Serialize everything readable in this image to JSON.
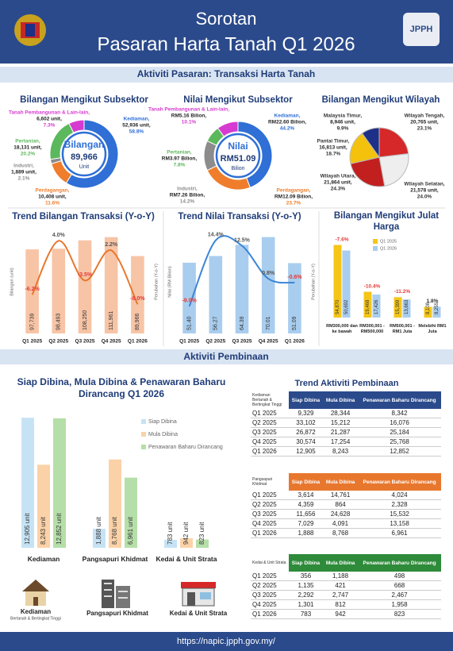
{
  "header": {
    "title_line1": "Sorotan",
    "title_line2": "Pasaran Harta Tanah Q1 2026",
    "logo": "JPPH"
  },
  "sections": [
    "Aktiviti Pasaran: Transaksi Harta Tanah",
    "Aktiviti Pembinaan"
  ],
  "chart_data": [
    {
      "type": "donut",
      "title": "Bilangan Mengikut Subsektor",
      "center": [
        "Bilangan",
        "89,966",
        "Unit"
      ],
      "categories": [
        "Kediaman,",
        "Perdagangan,",
        "Industri,",
        "Pertanian,",
        "Tanah Pembangunan & Lain-lain,"
      ],
      "amounts": [
        "52,936 unit,",
        "10,408 unit,",
        "1,889 unit,",
        "18,131 unit,",
        "6,602 unit,"
      ],
      "values": [
        58.8,
        11.6,
        2.1,
        20.2,
        7.3
      ],
      "value_labels": [
        "58.8%",
        "11.6%",
        "2.1%",
        "20.2%",
        "7.3%"
      ],
      "colors": [
        "#2f6fd6",
        "#ef7d2b",
        "#8c8c8c",
        "#5cb85c",
        "#d63ad0"
      ]
    },
    {
      "type": "donut",
      "title": "Nilai Mengikut Subsektor",
      "center": [
        "Nilai",
        "RM51.09",
        "Bilion"
      ],
      "categories": [
        "Kediaman,",
        "Perdagangan,",
        "Industri,",
        "Pertanian,",
        "Tanah Pembangunan & Lain-lain,"
      ],
      "amounts": [
        "RM22.60 Bilion,",
        "RM12.09 Bilion,",
        "RM7.26 Bilion,",
        "RM3.97 Bilion,",
        "RM5.16 Bilion,"
      ],
      "values": [
        44.2,
        23.7,
        14.2,
        7.8,
        10.1
      ],
      "value_labels": [
        "44.2%",
        "23.7%",
        "14.2%",
        "7.8%",
        "10.1%"
      ],
      "colors": [
        "#2f6fd6",
        "#ef7d2b",
        "#8c8c8c",
        "#5cb85c",
        "#d63ad0"
      ]
    },
    {
      "type": "pie",
      "title": "Bilangan Mengikut Wilayah",
      "categories": [
        "Malaysia Timur,",
        "Wilayah Tengah,",
        "Wilayah Selatan,",
        "Wilayah Utara,",
        "Pantai Timur,"
      ],
      "amounts": [
        "8,946 unit,",
        "20,765 unit,",
        "21,578 unit,",
        "21,864 unit,",
        "16,813 unit,"
      ],
      "values": [
        9.9,
        23.1,
        24.0,
        24.3,
        18.7
      ],
      "value_labels": [
        "9.9%",
        "23.1%",
        "24.0%",
        "24.3%",
        "18.7%"
      ],
      "colors": [
        "#1d2f87",
        "#d62828",
        "#eeeeee",
        "#c21f1f",
        "#f4c20d"
      ]
    },
    {
      "type": "bar-line",
      "title": "Trend Bilangan Transaksi (Y-o-Y)",
      "categories": [
        "Q1 2025",
        "Q2 2025",
        "Q3 2025",
        "Q4 2025",
        "Q1 2026"
      ],
      "values": [
        97739,
        98493,
        108250,
        111961,
        89966
      ],
      "value_labels": [
        "97,739",
        "98,493",
        "108,250",
        "111,961",
        "89,966"
      ],
      "line_values": [
        -6.2,
        4.0,
        -3.5,
        2.2,
        -8.0
      ],
      "line_labels": [
        "-6.2%",
        "4.0%",
        "-3.5%",
        "2.2%",
        "-8.0%"
      ],
      "ylabel": "Bilangan (unit)",
      "y2label": "Perubahan (Y-o-Y)",
      "ylim": [
        0,
        120000
      ],
      "y2lim": [
        -13.5,
        6
      ],
      "bar_color": "#f7c4a6",
      "line_color": "#e8772e"
    },
    {
      "type": "bar-line",
      "title": "Trend Nilai Transaksi (Y-o-Y)",
      "categories": [
        "Q1 2025",
        "Q2 2025",
        "Q3 2025",
        "Q4 2025",
        "Q1 2026"
      ],
      "values": [
        51.4,
        56.27,
        64.39,
        70.01,
        51.09
      ],
      "value_labels": [
        "51.40",
        "56.27",
        "64.39",
        "70.01",
        "51.09"
      ],
      "line_values": [
        -9.0,
        14.4,
        12.5,
        0.8,
        -0.6
      ],
      "line_labels": [
        "-9.0%",
        "14.4%",
        "12.5%",
        "0.8%",
        "-0.6%"
      ],
      "ylabel": "Nilai (RM Bilion)",
      "y2label": "Perubahan (Y-o-Y)",
      "ylim": [
        0,
        75
      ],
      "y2lim": [
        -18.6,
        18
      ],
      "bar_color": "#a9cdee",
      "line_color": "#3b86d6"
    },
    {
      "type": "grouped-bar",
      "title": "Bilangan Mengikut Julat Harga",
      "categories": [
        "RM300,000 dan ke bawah",
        "RM300,001 - RM500,000",
        "RM500,001 - RM1 Juta",
        "Melebihi RM1 Juta"
      ],
      "series": [
        {
          "name": "Q1 2025",
          "color": "#f5c518",
          "values": [
            54870,
            19468,
            15399,
            8108
          ],
          "value_labels": [
            "54,870",
            "19,468",
            "15,399",
            "8,108"
          ]
        },
        {
          "name": "Q1 2026",
          "color": "#a9cdee",
          "values": [
            50692,
            17426,
            13663,
            8255
          ],
          "value_labels": [
            "50,692",
            "17,426",
            "13,663",
            "8,255"
          ]
        }
      ],
      "changes": [
        "-7.6%",
        "-10.4%",
        "-11.2%",
        "1.8%"
      ],
      "ylim": [
        0,
        60000
      ]
    },
    {
      "type": "grouped-bar",
      "title": "Siap Dibina, Mula Dibina & Penawaran Baharu Dirancang Q1 2026",
      "categories": [
        "Kediaman",
        "Pangsapuri Khidmat",
        "Kedai & Unit Strata"
      ],
      "series": [
        {
          "name": "Siap Dibina",
          "color": "#c6e3f5",
          "values": [
            12905,
            1888,
            783
          ],
          "value_labels": [
            "12,905 unit",
            "1,888 unit",
            "783 unit"
          ]
        },
        {
          "name": "Mula Dibina",
          "color": "#fbd2a8",
          "values": [
            8243,
            8768,
            942
          ],
          "value_labels": [
            "8,243 unit",
            "8,768 unit",
            "942 unit"
          ]
        },
        {
          "name": "Penawaran Baharu Dirancang",
          "color": "#b5dfa8",
          "values": [
            12852,
            6961,
            823
          ],
          "value_labels": [
            "12,852 unit",
            "6,961 unit",
            "823 unit"
          ]
        }
      ],
      "ylim": [
        0,
        13000
      ],
      "icon_labels": [
        "Kediaman",
        "Bertanah & Bertingkat Tinggi",
        "Pangsapuri Khidmat",
        "Kedai & Unit Strata"
      ]
    }
  ],
  "tables": {
    "title": "Trend Aktiviti Pembinaan",
    "columns": [
      "Siap Dibina",
      "Mula Dibina",
      "Penawaran Baharu Dirancang"
    ],
    "groups": [
      {
        "label": "Kediaman Bertanah & Bertingkat Tinggi",
        "color": "#2b4a8b",
        "rows": [
          [
            "Q1 2025",
            "9,329",
            "28,344",
            "8,342"
          ],
          [
            "Q2 2025",
            "33,102",
            "15,212",
            "16,076"
          ],
          [
            "Q3 2025",
            "26,872",
            "21,287",
            "25,184"
          ],
          [
            "Q4 2025",
            "30,574",
            "17,254",
            "25,768"
          ],
          [
            "Q1 2026",
            "12,905",
            "8,243",
            "12,852"
          ]
        ]
      },
      {
        "label": "Pangsapuri Khidmat",
        "color": "#e8772e",
        "rows": [
          [
            "Q1 2025",
            "3,614",
            "14,761",
            "4,024"
          ],
          [
            "Q2 2025",
            "4,359",
            "864",
            "2,328"
          ],
          [
            "Q3 2025",
            "11,656",
            "24,628",
            "15,532"
          ],
          [
            "Q4 2025",
            "7,029",
            "4,091",
            "13,158"
          ],
          [
            "Q1 2026",
            "1,888",
            "8,768",
            "6,961"
          ]
        ]
      },
      {
        "label": "Kedai & Unit Strata",
        "color": "#2e8b3a",
        "rows": [
          [
            "Q1 2025",
            "356",
            "1,188",
            "498"
          ],
          [
            "Q2 2025",
            "1,135",
            "421",
            "668"
          ],
          [
            "Q3 2025",
            "2,292",
            "2,747",
            "2,467"
          ],
          [
            "Q4 2025",
            "1,301",
            "812",
            "1,958"
          ],
          [
            "Q1 2026",
            "783",
            "942",
            "823"
          ]
        ]
      }
    ]
  },
  "footer": "https://napic.jpph.gov.my/"
}
